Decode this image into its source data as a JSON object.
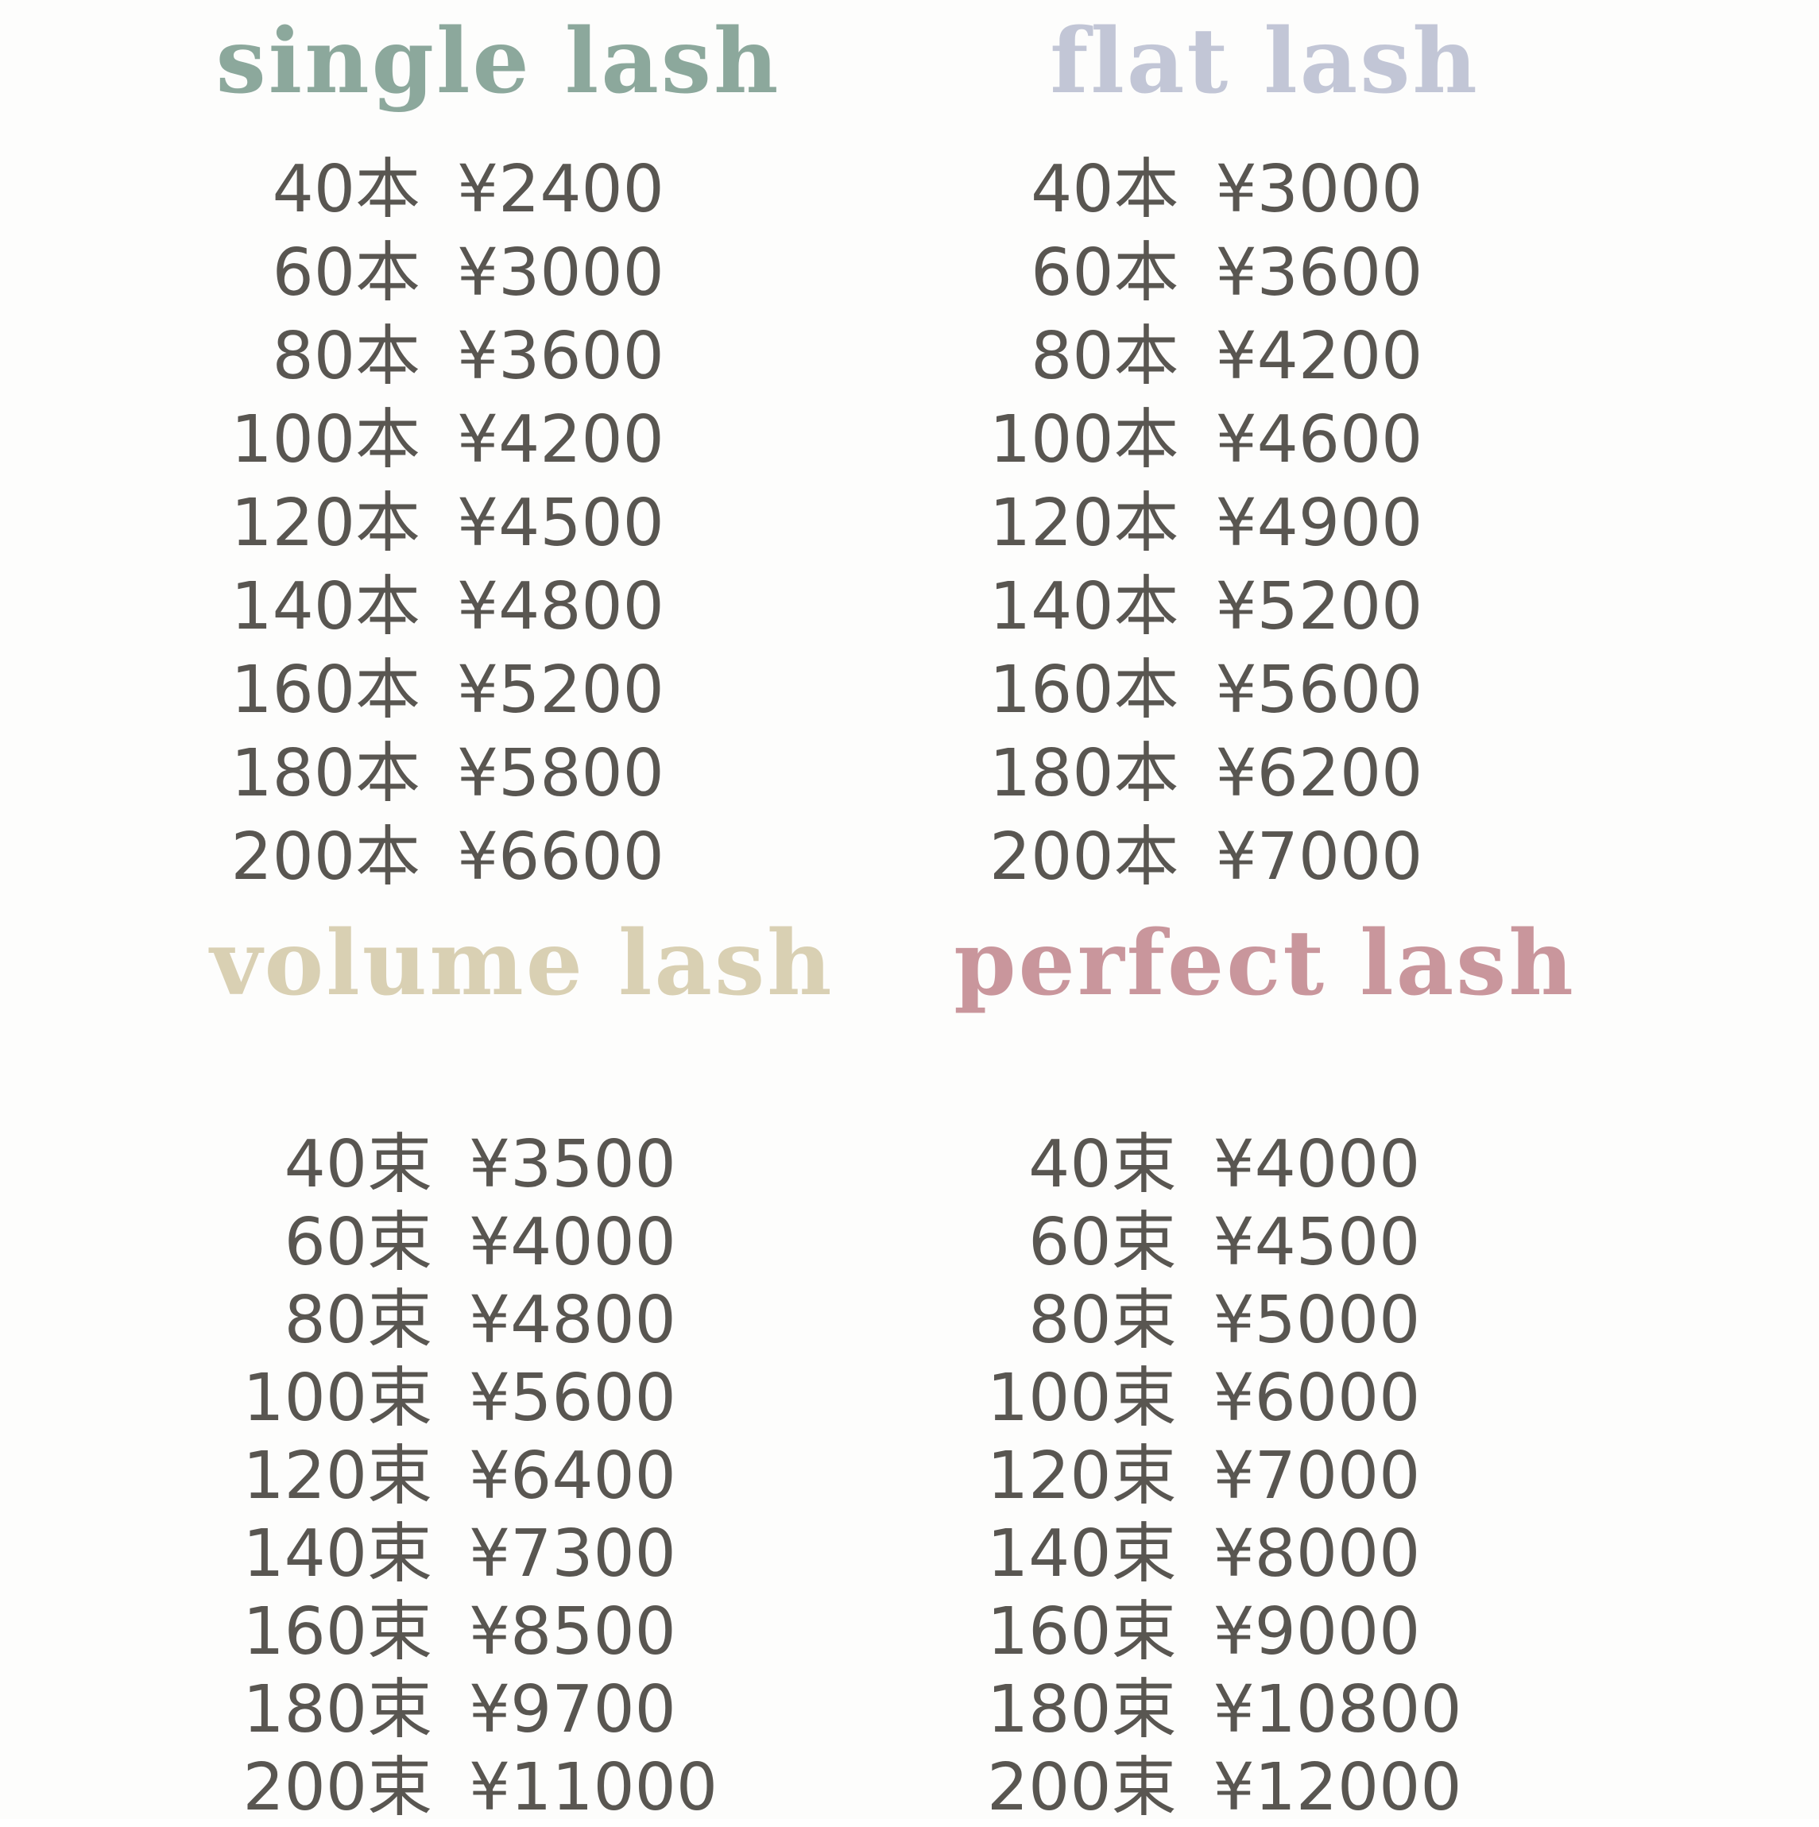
{
  "page": {
    "background": "#fdfdfc",
    "text_color": "#595651"
  },
  "sections": [
    {
      "key": "single-lash",
      "title": "single lash",
      "color": "#8ca89c",
      "rows": [
        {
          "qty": "40本",
          "price": "¥2400"
        },
        {
          "qty": "60本",
          "price": "¥3000"
        },
        {
          "qty": "80本",
          "price": "¥3600"
        },
        {
          "qty": "100本",
          "price": "¥4200"
        },
        {
          "qty": "120本",
          "price": "¥4500"
        },
        {
          "qty": "140本",
          "price": "¥4800"
        },
        {
          "qty": "160本",
          "price": "¥5200"
        },
        {
          "qty": "180本",
          "price": "¥5800"
        },
        {
          "qty": "200本",
          "price": "¥6600"
        }
      ]
    },
    {
      "key": "flat-lash",
      "title": "flat lash",
      "color": "#c2c6d6",
      "rows": [
        {
          "qty": "40本",
          "price": "¥3000"
        },
        {
          "qty": "60本",
          "price": "¥3600"
        },
        {
          "qty": "80本",
          "price": "¥4200"
        },
        {
          "qty": "100本",
          "price": "¥4600"
        },
        {
          "qty": "120本",
          "price": "¥4900"
        },
        {
          "qty": "140本",
          "price": "¥5200"
        },
        {
          "qty": "160本",
          "price": "¥5600"
        },
        {
          "qty": "180本",
          "price": "¥6200"
        },
        {
          "qty": "200本",
          "price": "¥7000"
        }
      ]
    },
    {
      "key": "volume-lash",
      "title": "volume lash",
      "color": "#d9d0b3",
      "rows": [
        {
          "qty": "40束",
          "price": "¥3500"
        },
        {
          "qty": "60束",
          "price": "¥4000"
        },
        {
          "qty": "80束",
          "price": "¥4800"
        },
        {
          "qty": "100束",
          "price": "¥5600"
        },
        {
          "qty": "120束",
          "price": "¥6400"
        },
        {
          "qty": "140束",
          "price": "¥7300"
        },
        {
          "qty": "160束",
          "price": "¥8500"
        },
        {
          "qty": "180束",
          "price": "¥9700"
        },
        {
          "qty": "200束",
          "price": "¥11000"
        }
      ]
    },
    {
      "key": "perfect-lash",
      "title": "perfect lash",
      "color": "#c9969c",
      "rows": [
        {
          "qty": "40束",
          "price": "¥4000"
        },
        {
          "qty": "60束",
          "price": "¥4500"
        },
        {
          "qty": "80束",
          "price": "¥5000"
        },
        {
          "qty": "100束",
          "price": "¥6000"
        },
        {
          "qty": "120束",
          "price": "¥7000"
        },
        {
          "qty": "140束",
          "price": "¥8000"
        },
        {
          "qty": "160束",
          "price": "¥9000"
        },
        {
          "qty": "180束",
          "price": "¥10800"
        },
        {
          "qty": "200束",
          "price": "¥12000"
        }
      ]
    }
  ]
}
